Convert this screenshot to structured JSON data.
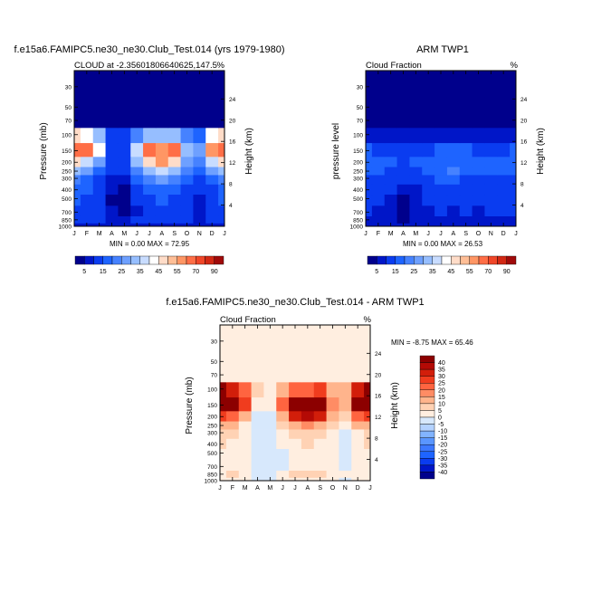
{
  "panels": [
    {
      "title": "f.e15a6.FAMIPC5.ne30_ne30.Club_Test.014 (yrs 1979-1980)",
      "left_label": "CLOUD at -2.35601806640625,147.5",
      "right_label": "%",
      "ylabel_left": "Pressure (mb)",
      "ylabel_right": "Height (km)",
      "minmax": "MIN =   0.00 MAX =  72.95"
    },
    {
      "title": "ARM TWP1",
      "left_label": "Cloud Fraction",
      "right_label": "%",
      "ylabel_left": "pressure level",
      "ylabel_right": "Height (km)",
      "minmax": "MIN =   0.00 MAX =  26.53"
    },
    {
      "title": "f.e15a6.FAMIPC5.ne30_ne30.Club_Test.014 - ARM TWP1",
      "left_label": "Cloud Fraction",
      "right_label": "%",
      "ylabel_left": "Pressure (mb)",
      "ylabel_right": "Height (km)",
      "minmax": "MIN =  -8.75 MAX =  65.46"
    }
  ],
  "chart_data": [
    {
      "type": "heatmap",
      "title": "f.e15a6.FAMIPC5.ne30_ne30.Club_Test.014 (yrs 1979-1980)",
      "subtitle": "CLOUD at -2.35601806640625,147.5",
      "units": "%",
      "xlabel": "",
      "ylabel": "Pressure (mb)",
      "ylabel_right": "Height (km)",
      "x_categories": [
        "J",
        "F",
        "M",
        "A",
        "M",
        "J",
        "J",
        "A",
        "S",
        "O",
        "N",
        "D",
        "J"
      ],
      "pressure_levels": [
        1000,
        850,
        700,
        500,
        400,
        300,
        250,
        200,
        150,
        100,
        70,
        50,
        30
      ],
      "y_ticks": [
        30,
        50,
        70,
        100,
        150,
        200,
        250,
        300,
        400,
        500,
        700,
        850,
        1000
      ],
      "height_ticks": [
        4,
        8,
        12,
        16,
        20,
        24
      ],
      "ylim": [
        1000,
        20
      ],
      "y_scale": "log",
      "min": 0.0,
      "max": 72.95,
      "values": [
        [
          8,
          8,
          8,
          8,
          8,
          8,
          8,
          8,
          8,
          8,
          8,
          8,
          8
        ],
        [
          12,
          11,
          10,
          9,
          8,
          10,
          12,
          13,
          12,
          10,
          9,
          10,
          12
        ],
        [
          14,
          13,
          10,
          6,
          4,
          9,
          12,
          13,
          12,
          10,
          8,
          11,
          14
        ],
        [
          16,
          14,
          10,
          4,
          3,
          10,
          14,
          15,
          14,
          11,
          9,
          12,
          16
        ],
        [
          18,
          15,
          11,
          5,
          4,
          12,
          16,
          18,
          16,
          12,
          10,
          14,
          18
        ],
        [
          22,
          18,
          13,
          8,
          6,
          15,
          22,
          25,
          22,
          15,
          12,
          17,
          22
        ],
        [
          30,
          25,
          18,
          10,
          10,
          20,
          30,
          35,
          30,
          20,
          16,
          25,
          30
        ],
        [
          45,
          38,
          25,
          12,
          12,
          30,
          48,
          55,
          48,
          28,
          22,
          38,
          45
        ],
        [
          68,
          62,
          40,
          14,
          14,
          38,
          60,
          58,
          62,
          32,
          26,
          55,
          68
        ],
        [
          48,
          42,
          30,
          12,
          10,
          20,
          30,
          30,
          32,
          20,
          18,
          40,
          48
        ],
        [
          4,
          4,
          4,
          3,
          3,
          3,
          3,
          3,
          3,
          3,
          3,
          4,
          4
        ],
        [
          0,
          0,
          0,
          0,
          0,
          0,
          0,
          0,
          0,
          0,
          0,
          0,
          0
        ],
        [
          0,
          0,
          0,
          0,
          0,
          0,
          0,
          0,
          0,
          0,
          0,
          0,
          0
        ]
      ]
    },
    {
      "type": "heatmap",
      "title": "ARM TWP1",
      "subtitle": "Cloud Fraction",
      "units": "%",
      "xlabel": "",
      "ylabel": "pressure level",
      "ylabel_right": "Height (km)",
      "x_categories": [
        "J",
        "F",
        "M",
        "A",
        "M",
        "J",
        "J",
        "A",
        "S",
        "O",
        "N",
        "D",
        "J"
      ],
      "pressure_levels": [
        1000,
        850,
        700,
        500,
        400,
        300,
        250,
        200,
        150,
        100,
        70,
        50,
        30
      ],
      "y_ticks": [
        30,
        50,
        70,
        100,
        150,
        200,
        250,
        300,
        400,
        500,
        700,
        850,
        1000
      ],
      "height_ticks": [
        4,
        8,
        12,
        16,
        20,
        24
      ],
      "ylim": [
        1000,
        20
      ],
      "y_scale": "log",
      "min": 0.0,
      "max": 26.53,
      "values": [
        [
          8,
          8,
          8,
          8,
          8,
          8,
          8,
          8,
          8,
          8,
          8,
          8,
          8
        ],
        [
          6,
          6,
          5,
          4,
          5,
          6,
          6,
          6,
          6,
          5,
          6,
          6,
          6
        ],
        [
          10,
          9,
          8,
          3,
          5,
          9,
          10,
          9,
          10,
          9,
          10,
          10,
          10
        ],
        [
          12,
          11,
          9,
          4,
          6,
          10,
          12,
          11,
          12,
          10,
          11,
          11,
          12
        ],
        [
          13,
          12,
          10,
          6,
          8,
          12,
          14,
          13,
          12,
          11,
          12,
          12,
          13
        ],
        [
          14,
          13,
          12,
          10,
          11,
          13,
          15,
          17,
          14,
          13,
          13,
          13,
          14
        ],
        [
          16,
          15,
          14,
          13,
          14,
          15,
          16,
          20,
          16,
          15,
          15,
          15,
          16
        ],
        [
          17,
          16,
          15,
          14,
          15,
          16,
          17,
          18,
          17,
          16,
          16,
          16,
          17
        ],
        [
          15,
          14,
          13,
          13,
          14,
          14,
          15,
          15,
          15,
          14,
          14,
          14,
          15
        ],
        [
          8,
          8,
          7,
          7,
          7,
          7,
          7,
          7,
          7,
          7,
          7,
          8,
          8
        ],
        [
          0,
          0,
          0,
          0,
          0,
          0,
          0,
          0,
          0,
          0,
          0,
          0,
          0
        ],
        [
          0,
          0,
          0,
          0,
          0,
          0,
          0,
          0,
          0,
          0,
          0,
          0,
          0
        ],
        [
          0,
          0,
          0,
          0,
          0,
          0,
          0,
          0,
          0,
          0,
          0,
          0,
          0
        ]
      ]
    },
    {
      "type": "heatmap",
      "title": "f.e15a6.FAMIPC5.ne30_ne30.Club_Test.014 - ARM TWP1",
      "subtitle": "Cloud Fraction",
      "units": "%",
      "xlabel": "",
      "ylabel": "Pressure (mb)",
      "ylabel_right": "Height (km)",
      "x_categories": [
        "J",
        "F",
        "M",
        "A",
        "M",
        "J",
        "J",
        "A",
        "S",
        "O",
        "N",
        "D",
        "J"
      ],
      "pressure_levels": [
        1000,
        850,
        700,
        500,
        400,
        300,
        250,
        200,
        150,
        100,
        70,
        50,
        30
      ],
      "y_ticks": [
        30,
        50,
        70,
        100,
        150,
        200,
        250,
        300,
        400,
        500,
        700,
        850,
        1000
      ],
      "height_ticks": [
        4,
        8,
        12,
        16,
        20,
        24
      ],
      "ylim": [
        1000,
        20
      ],
      "y_scale": "log",
      "min": -8.75,
      "max": 65.46,
      "values": [
        [
          0,
          0,
          0,
          -2,
          -2,
          0,
          0,
          0,
          0,
          0,
          -1,
          0,
          0
        ],
        [
          4,
          5,
          4,
          -3,
          -4,
          4,
          5,
          6,
          5,
          4,
          3,
          4,
          4
        ],
        [
          4,
          4,
          2,
          -3,
          -4,
          -1,
          2,
          4,
          2,
          1,
          -2,
          1,
          4
        ],
        [
          4,
          3,
          1,
          -4,
          -5,
          -1,
          2,
          4,
          2,
          1,
          -2,
          1,
          4
        ],
        [
          5,
          3,
          1,
          -3,
          -4,
          0,
          2,
          5,
          4,
          1,
          -2,
          2,
          5
        ],
        [
          8,
          5,
          1,
          -2,
          -5,
          2,
          7,
          8,
          8,
          2,
          -1,
          4,
          8
        ],
        [
          14,
          10,
          4,
          -3,
          -4,
          5,
          14,
          15,
          14,
          5,
          1,
          10,
          14
        ],
        [
          28,
          22,
          10,
          -2,
          -3,
          14,
          31,
          37,
          31,
          12,
          6,
          22,
          28
        ],
        [
          53,
          48,
          27,
          1,
          0,
          24,
          45,
          43,
          47,
          18,
          12,
          41,
          53
        ],
        [
          40,
          34,
          23,
          5,
          3,
          13,
          23,
          23,
          25,
          13,
          11,
          32,
          40
        ],
        [
          4,
          4,
          4,
          3,
          3,
          3,
          3,
          3,
          3,
          3,
          3,
          4,
          4
        ],
        [
          0,
          0,
          0,
          0,
          0,
          0,
          0,
          0,
          0,
          0,
          0,
          0,
          0
        ],
        [
          0,
          0,
          0,
          0,
          0,
          0,
          0,
          0,
          0,
          0,
          0,
          0,
          0
        ]
      ]
    }
  ],
  "colorbars": {
    "top": {
      "labels": [
        "5",
        "15",
        "25",
        "35",
        "45",
        "55",
        "70",
        "90"
      ],
      "levels": [
        5,
        10,
        15,
        20,
        25,
        30,
        35,
        40,
        45,
        50,
        55,
        60,
        70,
        80,
        90
      ],
      "colors": [
        "#00008c",
        "#0016c8",
        "#0a3cf0",
        "#1e64ff",
        "#4682ff",
        "#6ea0ff",
        "#96beff",
        "#c8dcff",
        "#ffffff",
        "#ffdcc8",
        "#ffbe96",
        "#ff9664",
        "#ff6e46",
        "#f04628",
        "#d22814",
        "#a00a0a"
      ]
    },
    "bottom": {
      "labels": [
        "40",
        "35",
        "30",
        "25",
        "20",
        "15",
        "10",
        "5",
        "0",
        "-5",
        "-10",
        "-15",
        "-20",
        "-25",
        "-30",
        "-35",
        "-40"
      ],
      "levels": [
        -40,
        -35,
        -30,
        -25,
        -20,
        -15,
        -10,
        -5,
        0,
        5,
        10,
        15,
        20,
        25,
        30,
        35,
        40
      ],
      "colors": [
        "#00008c",
        "#0016c8",
        "#0a3cf0",
        "#1e64ff",
        "#3c78ff",
        "#5a96ff",
        "#82b4ff",
        "#b4d2ff",
        "#d7e8fc",
        "#ffeee0",
        "#ffd2b4",
        "#ffb48c",
        "#ff8c64",
        "#ff6440",
        "#f03c1e",
        "#d21e0a",
        "#b40a05",
        "#8c0000"
      ]
    }
  }
}
